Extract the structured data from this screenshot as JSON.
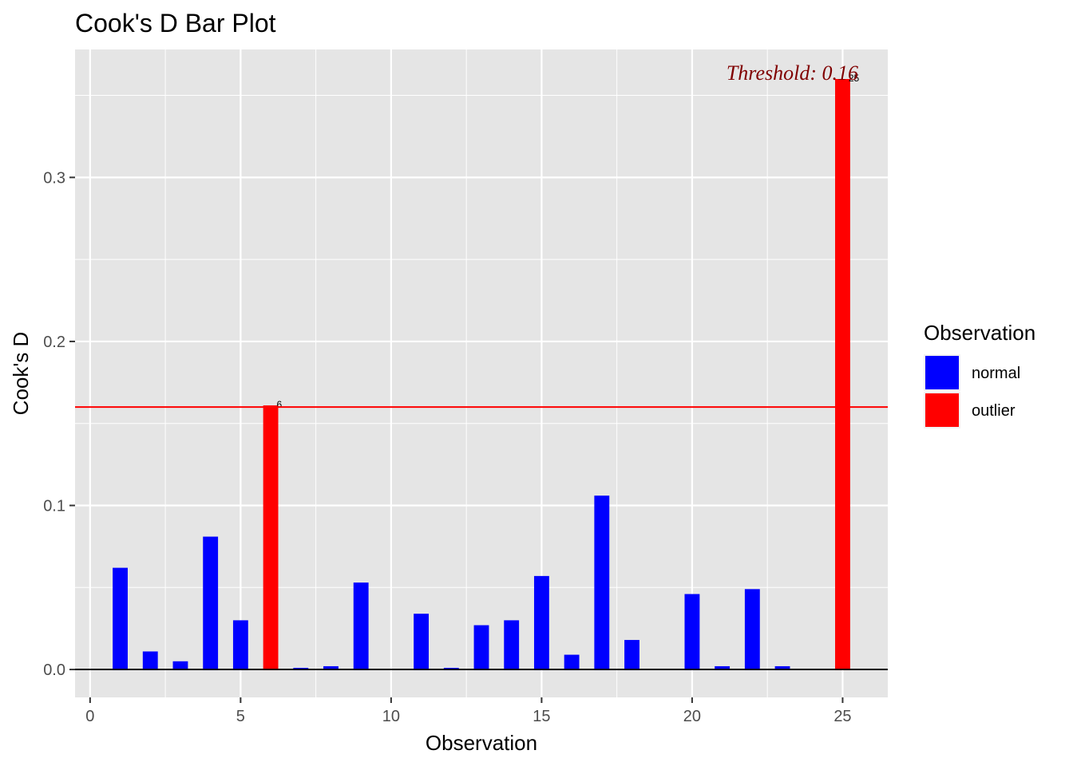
{
  "chart_data": {
    "type": "bar",
    "title": "Cook's D Bar Plot",
    "xlabel": "Observation",
    "ylabel": "Cook's D",
    "xlim": [
      -0.5,
      26.5
    ],
    "ylim": [
      -0.017,
      0.378
    ],
    "x_ticks": [
      0,
      5,
      10,
      15,
      20,
      25
    ],
    "y_ticks": [
      0.0,
      0.1,
      0.2,
      0.3
    ],
    "y_tick_labels": [
      "0.0",
      "0.1",
      "0.2",
      "0.3"
    ],
    "grid": true,
    "threshold": 0.16,
    "threshold_label": "Threshold: 0.16",
    "legend": {
      "title": "Observation",
      "position": "right",
      "entries": [
        {
          "key": "normal",
          "label": "normal",
          "color": "#0000FF"
        },
        {
          "key": "outlier",
          "label": "outlier",
          "color": "#FF0000"
        }
      ]
    },
    "bars": [
      {
        "x": 1,
        "value": 0.062,
        "group": "normal"
      },
      {
        "x": 2,
        "value": 0.011,
        "group": "normal"
      },
      {
        "x": 3,
        "value": 0.005,
        "group": "normal"
      },
      {
        "x": 4,
        "value": 0.081,
        "group": "normal"
      },
      {
        "x": 5,
        "value": 0.03,
        "group": "normal"
      },
      {
        "x": 6,
        "value": 0.161,
        "group": "outlier",
        "label": "6"
      },
      {
        "x": 7,
        "value": 0.001,
        "group": "normal"
      },
      {
        "x": 8,
        "value": 0.002,
        "group": "normal"
      },
      {
        "x": 9,
        "value": 0.053,
        "group": "normal"
      },
      {
        "x": 10,
        "value": 0.0,
        "group": "normal"
      },
      {
        "x": 11,
        "value": 0.034,
        "group": "normal"
      },
      {
        "x": 12,
        "value": 0.001,
        "group": "normal"
      },
      {
        "x": 13,
        "value": 0.027,
        "group": "normal"
      },
      {
        "x": 14,
        "value": 0.03,
        "group": "normal"
      },
      {
        "x": 15,
        "value": 0.057,
        "group": "normal"
      },
      {
        "x": 16,
        "value": 0.009,
        "group": "normal"
      },
      {
        "x": 17,
        "value": 0.106,
        "group": "normal"
      },
      {
        "x": 18,
        "value": 0.018,
        "group": "normal"
      },
      {
        "x": 19,
        "value": 0.0,
        "group": "normal"
      },
      {
        "x": 20,
        "value": 0.046,
        "group": "normal"
      },
      {
        "x": 21,
        "value": 0.002,
        "group": "normal"
      },
      {
        "x": 22,
        "value": 0.049,
        "group": "normal"
      },
      {
        "x": 23,
        "value": 0.002,
        "group": "normal"
      },
      {
        "x": 24,
        "value": 0.0,
        "group": "normal"
      },
      {
        "x": 25,
        "value": 0.36,
        "group": "outlier",
        "label": "25"
      }
    ],
    "colors": {
      "panel_background": "#E5E5E5",
      "grid": "#FFFFFF",
      "threshold_line": "#FF0000",
      "threshold_text": "#800000",
      "zero_line": "#000000"
    }
  }
}
